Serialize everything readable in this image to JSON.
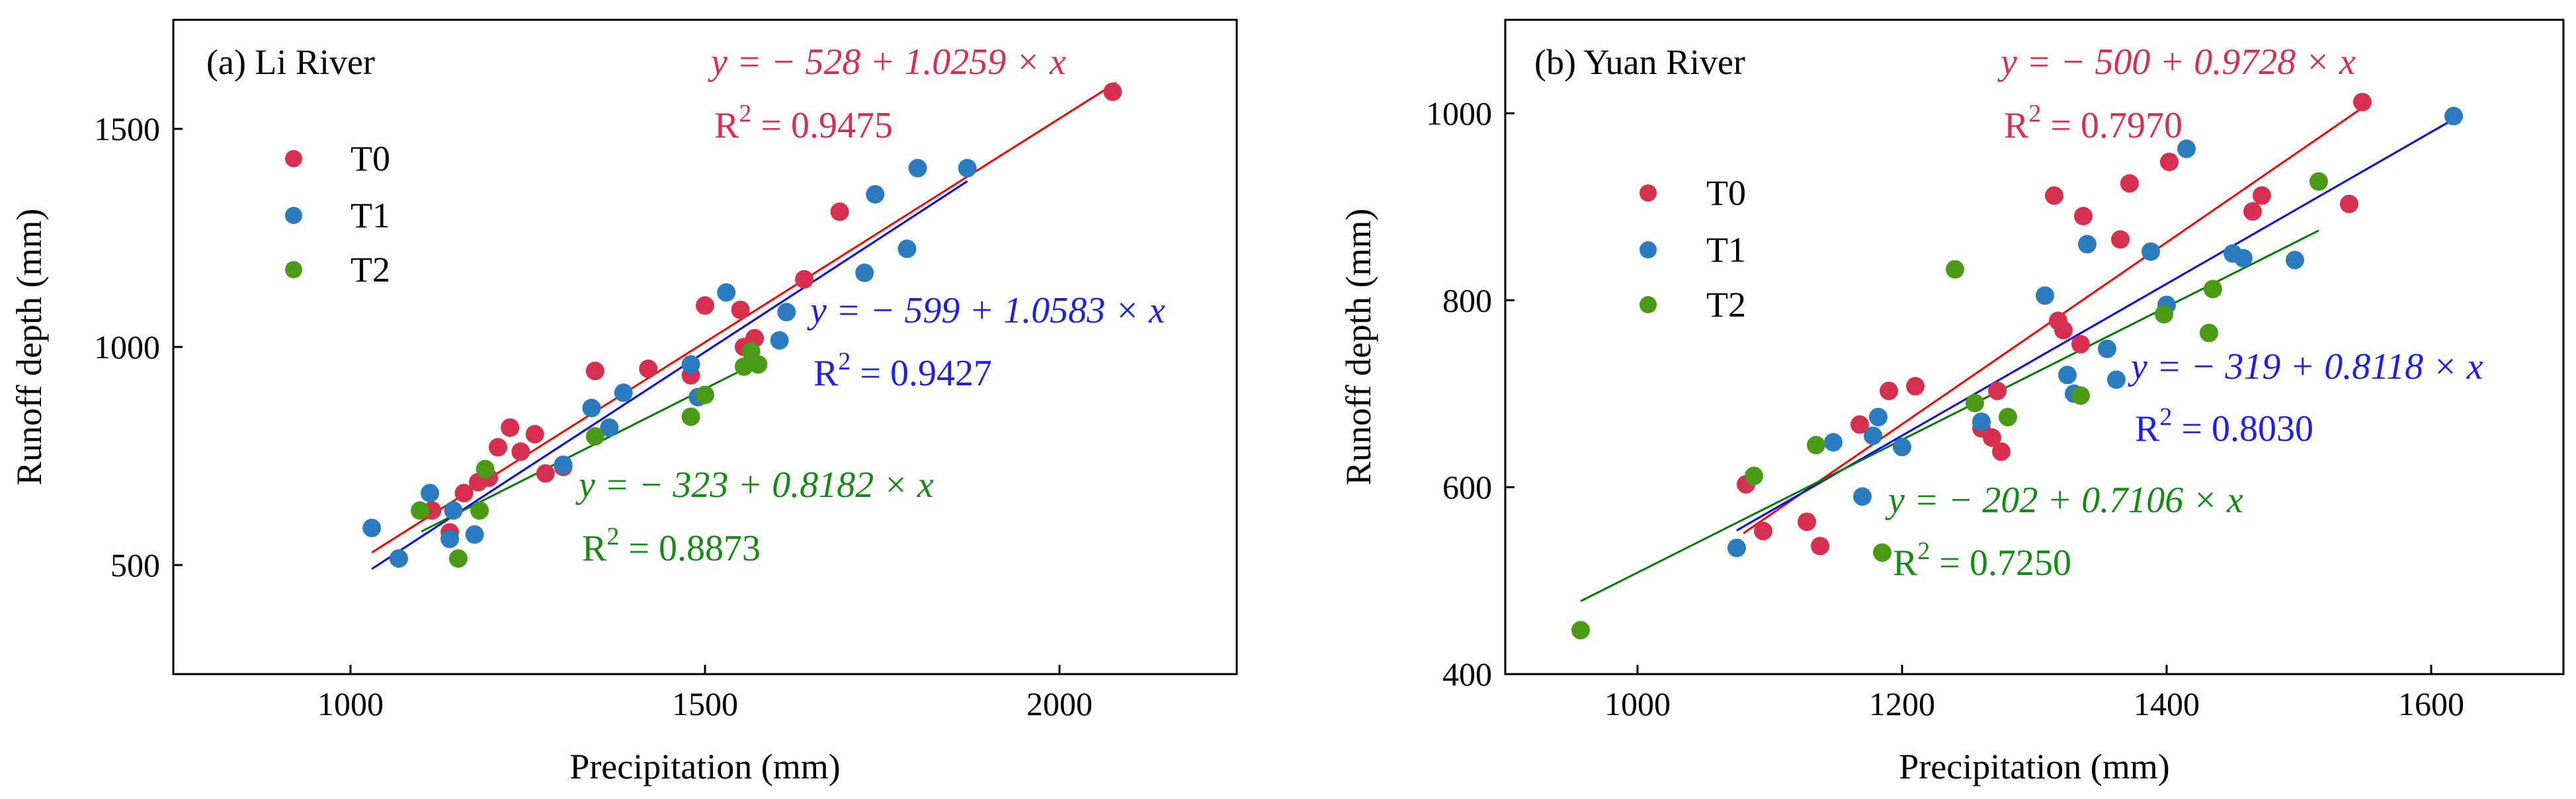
{
  "chart_data": [
    {
      "type": "scatter",
      "title": "(a) Li River",
      "xlabel": "Precipitation (mm)",
      "ylabel": "Runoff depth (mm)",
      "xlim": [
        750,
        2250
      ],
      "ylim": [
        250,
        1750
      ],
      "xticks": [
        1000,
        1500,
        2000
      ],
      "yticks": [
        500,
        1000,
        1500
      ],
      "xtick_labels": [
        "1000",
        "1500",
        "2000"
      ],
      "ytick_labels": [
        "500",
        "1000",
        "1500"
      ],
      "legend": [
        "T0",
        "T1",
        "T2"
      ],
      "series": [
        {
          "name": "T0",
          "color": "#d62f4f",
          "points": [
            [
              1115,
              625
            ],
            [
              1140,
              575
            ],
            [
              1160,
              665
            ],
            [
              1180,
              690
            ],
            [
              1195,
              700
            ],
            [
              1208,
              770
            ],
            [
              1225,
              815
            ],
            [
              1240,
              760
            ],
            [
              1260,
              800
            ],
            [
              1275,
              710
            ],
            [
              1300,
              725
            ],
            [
              1345,
              945
            ],
            [
              1420,
              950
            ],
            [
              1480,
              935
            ],
            [
              1500,
              1095
            ],
            [
              1550,
              1085
            ],
            [
              1555,
              1000
            ],
            [
              1570,
              1020
            ],
            [
              1640,
              1155
            ],
            [
              1690,
              1310
            ],
            [
              2075,
              1585
            ]
          ],
          "fit": {
            "equation": "y = − 528 + 1.0259 × x",
            "intercept": -528,
            "slope": 1.0259,
            "r2": "0.9475",
            "x_range": [
              1030,
              2080
            ]
          }
        },
        {
          "name": "T1",
          "color": "#2b7bbf",
          "points": [
            [
              1030,
              585
            ],
            [
              1068,
              515
            ],
            [
              1112,
              665
            ],
            [
              1140,
              560
            ],
            [
              1145,
              625
            ],
            [
              1175,
              570
            ],
            [
              1300,
              730
            ],
            [
              1340,
              860
            ],
            [
              1365,
              815
            ],
            [
              1385,
              895
            ],
            [
              1480,
              960
            ],
            [
              1490,
              885
            ],
            [
              1530,
              1125
            ],
            [
              1605,
              1015
            ],
            [
              1615,
              1080
            ],
            [
              1725,
              1170
            ],
            [
              1740,
              1350
            ],
            [
              1785,
              1225
            ],
            [
              1800,
              1410
            ],
            [
              1870,
              1410
            ]
          ],
          "fit": {
            "equation": "y = − 599 + 1.0583 × x",
            "intercept": -599,
            "slope": 1.0583,
            "r2": "0.9427",
            "x_range": [
              1030,
              1870
            ]
          }
        },
        {
          "name": "T2",
          "color": "#4a9a16",
          "points": [
            [
              1098,
              625
            ],
            [
              1152,
              515
            ],
            [
              1182,
              625
            ],
            [
              1190,
              720
            ],
            [
              1345,
              795
            ],
            [
              1480,
              840
            ],
            [
              1500,
              890
            ],
            [
              1555,
              955
            ],
            [
              1565,
              990
            ],
            [
              1575,
              960
            ]
          ],
          "fit": {
            "equation": "y = − 323 + 0.8182 × x",
            "intercept": -323,
            "slope": 0.8182,
            "r2": "0.8873",
            "x_range": [
              1100,
              1575
            ]
          }
        }
      ]
    },
    {
      "type": "scatter",
      "title": "(b) Yuan River",
      "xlabel": "Precipitation (mm)",
      "ylabel": "Runoff depth (mm)",
      "xlim": [
        900,
        1700
      ],
      "ylim": [
        400,
        1100
      ],
      "xticks": [
        1000,
        1200,
        1400,
        1600
      ],
      "yticks": [
        400,
        600,
        800,
        1000
      ],
      "xtick_labels": [
        "1000",
        "1200",
        "1400",
        "1600"
      ],
      "ytick_labels": [
        "400",
        "600",
        "800",
        "1000"
      ],
      "legend": [
        "T0",
        "T1",
        "T2"
      ],
      "series": [
        {
          "name": "T0",
          "color": "#d62f4f",
          "points": [
            [
              1082,
              603
            ],
            [
              1095,
              553
            ],
            [
              1128,
              563
            ],
            [
              1138,
              537
            ],
            [
              1168,
              667
            ],
            [
              1190,
              703
            ],
            [
              1210,
              708
            ],
            [
              1260,
              663
            ],
            [
              1268,
              653
            ],
            [
              1272,
              703
            ],
            [
              1275,
              638
            ],
            [
              1315,
              912
            ],
            [
              1318,
              778
            ],
            [
              1322,
              768
            ],
            [
              1335,
              753
            ],
            [
              1337,
              890
            ],
            [
              1365,
              865
            ],
            [
              1372,
              925
            ],
            [
              1402,
              948
            ],
            [
              1465,
              895
            ],
            [
              1472,
              912
            ],
            [
              1538,
              903
            ],
            [
              1548,
              1012
            ]
          ],
          "fit": {
            "equation": "y = − 500 + 0.9728 × x",
            "intercept": -500,
            "slope": 0.9728,
            "r2": "0.7970",
            "x_range": [
              1080,
              1548
            ]
          }
        },
        {
          "name": "T1",
          "color": "#2b7bbf",
          "points": [
            [
              1075,
              535
            ],
            [
              1148,
              648
            ],
            [
              1170,
              590
            ],
            [
              1178,
              655
            ],
            [
              1182,
              675
            ],
            [
              1200,
              643
            ],
            [
              1260,
              670
            ],
            [
              1308,
              805
            ],
            [
              1325,
              720
            ],
            [
              1330,
              700
            ],
            [
              1340,
              860
            ],
            [
              1355,
              748
            ],
            [
              1362,
              715
            ],
            [
              1388,
              852
            ],
            [
              1400,
              795
            ],
            [
              1415,
              962
            ],
            [
              1450,
              850
            ],
            [
              1458,
              845
            ],
            [
              1497,
              843
            ],
            [
              1617,
              997
            ]
          ],
          "fit": {
            "equation": "y = − 319 + 0.8118 × x",
            "intercept": -319,
            "slope": 0.8118,
            "r2": "0.8030",
            "x_range": [
              1075,
              1617
            ]
          }
        },
        {
          "name": "T2",
          "color": "#4a9a16",
          "points": [
            [
              957,
              447
            ],
            [
              1088,
              612
            ],
            [
              1135,
              645
            ],
            [
              1185,
              530
            ],
            [
              1240,
              833
            ],
            [
              1255,
              690
            ],
            [
              1280,
              675
            ],
            [
              1335,
              698
            ],
            [
              1398,
              785
            ],
            [
              1432,
              765
            ],
            [
              1435,
              812
            ],
            [
              1515,
              927
            ]
          ],
          "fit": {
            "equation": "y = − 202 + 0.7106 × x",
            "intercept": -202,
            "slope": 0.7106,
            "r2": "0.7250",
            "x_range": [
              957,
              1515
            ]
          }
        }
      ]
    }
  ]
}
